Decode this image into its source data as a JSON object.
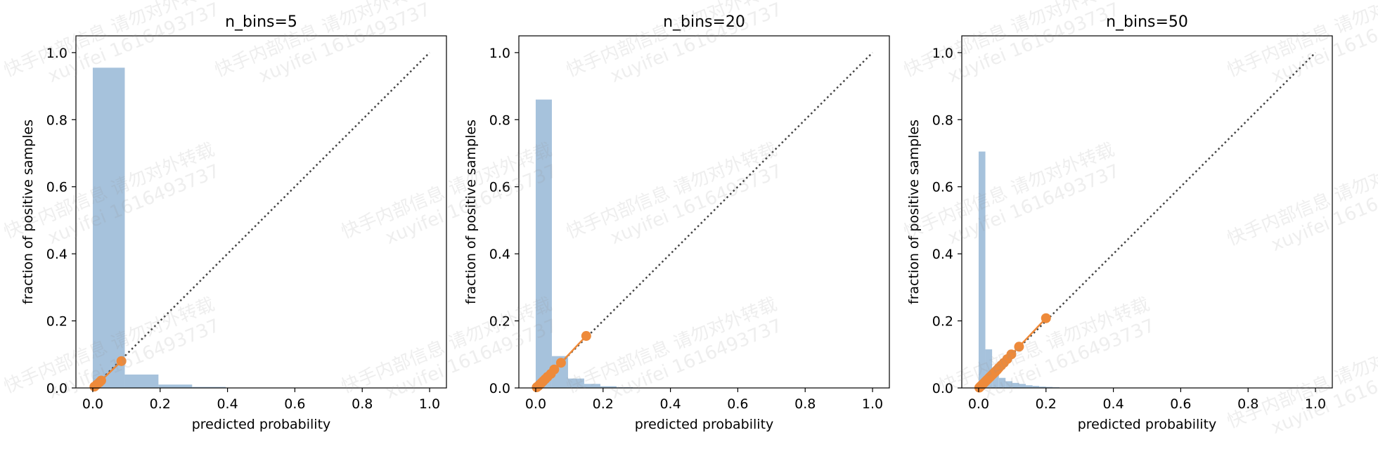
{
  "watermark": {
    "line1": "快手内部信息 请勿对外转载",
    "line2": "xuyifei 1616493737"
  },
  "colors": {
    "hist": "#a6c2dc",
    "curve": "#ee8a3a",
    "diagonal": "#444444"
  },
  "chart_data": [
    {
      "type": "line",
      "title": "n_bins=5",
      "xlabel": "predicted probability",
      "ylabel": "fraction of positive samples",
      "xlim": [
        -0.05,
        1.05
      ],
      "ylim": [
        0,
        1.05
      ],
      "xticks": [
        "0.0",
        "0.2",
        "0.4",
        "0.6",
        "0.8",
        "1.0"
      ],
      "yticks": [
        "0.0",
        "0.2",
        "0.4",
        "0.6",
        "0.8",
        "1.0"
      ],
      "histogram": {
        "bin_edges": [
          0.0,
          0.095,
          0.195,
          0.295,
          0.395
        ],
        "heights": [
          0.955,
          0.04,
          0.01,
          0.003
        ]
      },
      "series": [
        {
          "x": [
            0.005,
            0.012,
            0.02,
            0.025,
            0.085
          ],
          "y": [
            0.004,
            0.01,
            0.017,
            0.022,
            0.08
          ]
        }
      ],
      "reference_line": {
        "x": [
          0,
          1
        ],
        "y": [
          0,
          1
        ]
      }
    },
    {
      "type": "line",
      "title": "n_bins=20",
      "xlabel": "predicted probability",
      "ylabel": "fraction of positive samples",
      "xlim": [
        -0.05,
        1.05
      ],
      "ylim": [
        0,
        1.05
      ],
      "xticks": [
        "0.0",
        "0.2",
        "0.4",
        "0.6",
        "0.8",
        "1.0"
      ],
      "yticks": [
        "0.0",
        "0.2",
        "0.4",
        "0.6",
        "0.8",
        "1.0"
      ],
      "histogram": {
        "bin_edges": [
          0.0,
          0.048,
          0.096,
          0.144,
          0.192,
          0.24,
          0.288
        ],
        "heights": [
          0.86,
          0.095,
          0.028,
          0.012,
          0.005,
          0.002
        ]
      },
      "series": [
        {
          "x": [
            0.003,
            0.008,
            0.012,
            0.017,
            0.022,
            0.028,
            0.035,
            0.045,
            0.055,
            0.075,
            0.15
          ],
          "y": [
            0.002,
            0.006,
            0.01,
            0.015,
            0.02,
            0.026,
            0.033,
            0.042,
            0.055,
            0.075,
            0.155
          ]
        }
      ],
      "reference_line": {
        "x": [
          0,
          1
        ],
        "y": [
          0,
          1
        ]
      }
    },
    {
      "type": "line",
      "title": "n_bins=50",
      "xlabel": "predicted probability",
      "ylabel": "fraction of positive samples",
      "xlim": [
        -0.05,
        1.05
      ],
      "ylim": [
        0,
        1.05
      ],
      "xticks": [
        "0.0",
        "0.2",
        "0.4",
        "0.6",
        "0.8",
        "1.0"
      ],
      "yticks": [
        "0.0",
        "0.2",
        "0.4",
        "0.6",
        "0.8",
        "1.0"
      ],
      "histogram": {
        "bin_edges": [
          0.0,
          0.02,
          0.04,
          0.06,
          0.08,
          0.1,
          0.12,
          0.14,
          0.16,
          0.18,
          0.2,
          0.22,
          0.24
        ],
        "heights": [
          0.705,
          0.115,
          0.05,
          0.03,
          0.02,
          0.015,
          0.012,
          0.008,
          0.006,
          0.004,
          0.003,
          0.002
        ]
      },
      "series": [
        {
          "x": [
            0.002,
            0.006,
            0.01,
            0.014,
            0.018,
            0.022,
            0.026,
            0.03,
            0.034,
            0.038,
            0.042,
            0.046,
            0.05,
            0.055,
            0.06,
            0.067,
            0.075,
            0.085,
            0.097,
            0.12,
            0.2
          ],
          "y": [
            0.001,
            0.005,
            0.009,
            0.013,
            0.017,
            0.021,
            0.025,
            0.029,
            0.033,
            0.037,
            0.041,
            0.045,
            0.049,
            0.054,
            0.06,
            0.067,
            0.075,
            0.086,
            0.1,
            0.123,
            0.208
          ]
        }
      ],
      "reference_line": {
        "x": [
          0,
          1
        ],
        "y": [
          0,
          1
        ]
      }
    }
  ]
}
